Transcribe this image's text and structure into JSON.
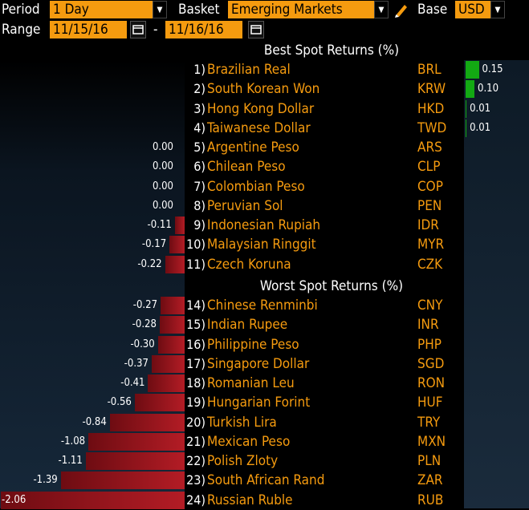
{
  "controls": {
    "period_label": "Period",
    "period_value": "1 Day",
    "basket_label": "Basket",
    "basket_value": "Emerging Markets",
    "base_label": "Base",
    "base_value": "USD",
    "range_label": "Range",
    "range_start": "11/15/16",
    "range_sep": "-",
    "range_end": "11/16/16"
  },
  "best_header": "Best Spot Returns (%)",
  "worst_header": "Worst Spot Returns (%)",
  "colors": {
    "accent": "#f59b0f",
    "positive": "#13a913",
    "negative": "#b31c25"
  },
  "best": [
    {
      "rank": "1)",
      "name": "Brazilian Real",
      "code": "BRL",
      "value": "0.15",
      "num": 0.15
    },
    {
      "rank": "2)",
      "name": "South Korean Won",
      "code": "KRW",
      "value": "0.10",
      "num": 0.1
    },
    {
      "rank": "3)",
      "name": "Hong Kong Dollar",
      "code": "HKD",
      "value": "0.01",
      "num": 0.01
    },
    {
      "rank": "4)",
      "name": "Taiwanese Dollar",
      "code": "TWD",
      "value": "0.01",
      "num": 0.01
    },
    {
      "rank": "5)",
      "name": "Argentine Peso",
      "code": "ARS",
      "value": "0.00",
      "num": 0
    },
    {
      "rank": "6)",
      "name": "Chilean Peso",
      "code": "CLP",
      "value": "0.00",
      "num": 0
    },
    {
      "rank": "7)",
      "name": "Colombian Peso",
      "code": "COP",
      "value": "0.00",
      "num": 0
    },
    {
      "rank": "8)",
      "name": "Peruvian Sol",
      "code": "PEN",
      "value": "0.00",
      "num": 0
    },
    {
      "rank": "9)",
      "name": "Indonesian Rupiah",
      "code": "IDR",
      "value": "-0.11",
      "num": -0.11
    },
    {
      "rank": "10)",
      "name": "Malaysian Ringgit",
      "code": "MYR",
      "value": "-0.17",
      "num": -0.17
    },
    {
      "rank": "11)",
      "name": "Czech Koruna",
      "code": "CZK",
      "value": "-0.22",
      "num": -0.22
    }
  ],
  "worst": [
    {
      "rank": "14)",
      "name": "Chinese Renminbi",
      "code": "CNY",
      "value": "-0.27",
      "num": -0.27
    },
    {
      "rank": "15)",
      "name": "Indian Rupee",
      "code": "INR",
      "value": "-0.28",
      "num": -0.28
    },
    {
      "rank": "16)",
      "name": "Philippine Peso",
      "code": "PHP",
      "value": "-0.30",
      "num": -0.3
    },
    {
      "rank": "17)",
      "name": "Singapore Dollar",
      "code": "SGD",
      "value": "-0.37",
      "num": -0.37
    },
    {
      "rank": "18)",
      "name": "Romanian Leu",
      "code": "RON",
      "value": "-0.41",
      "num": -0.41
    },
    {
      "rank": "19)",
      "name": "Hungarian Forint",
      "code": "HUF",
      "value": "-0.56",
      "num": -0.56
    },
    {
      "rank": "20)",
      "name": "Turkish Lira",
      "code": "TRY",
      "value": "-0.84",
      "num": -0.84
    },
    {
      "rank": "21)",
      "name": "Mexican Peso",
      "code": "MXN",
      "value": "-1.08",
      "num": -1.08
    },
    {
      "rank": "22)",
      "name": "Polish Zloty",
      "code": "PLN",
      "value": "-1.11",
      "num": -1.11
    },
    {
      "rank": "23)",
      "name": "South African Rand",
      "code": "ZAR",
      "value": "-1.39",
      "num": -1.39
    },
    {
      "rank": "24)",
      "name": "Russian Ruble",
      "code": "RUB",
      "value": "-2.06",
      "num": -2.06
    }
  ]
}
